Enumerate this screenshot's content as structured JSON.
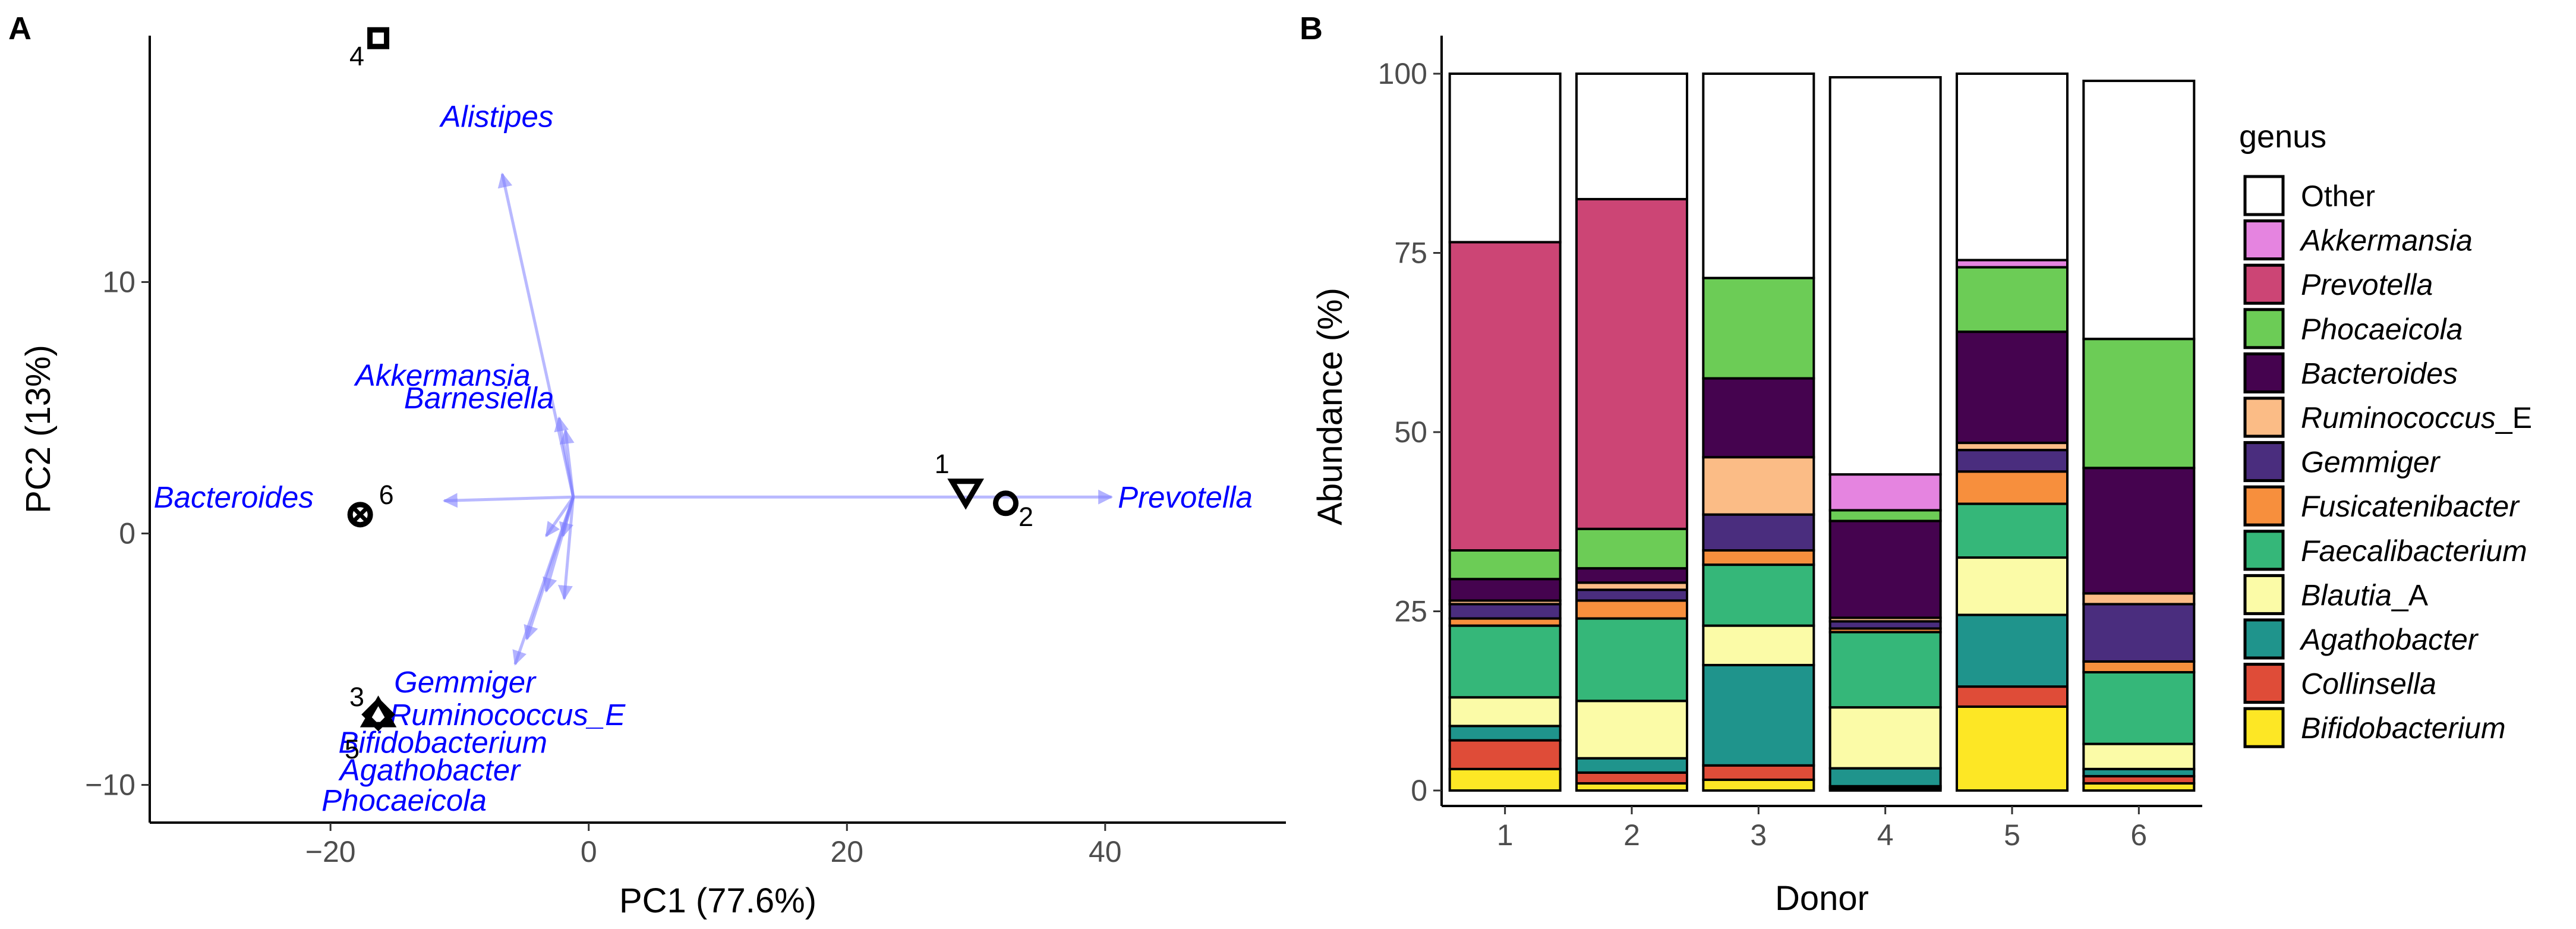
{
  "colors": {
    "arrow": "#8080ff",
    "genus_text": "#0000ff",
    "genus": {
      "Other": "#ffffff",
      "Akkermansia": "#e584e0",
      "Prevotella": "#cc4575",
      "Phocaeicola": "#6ccc56",
      "Bacteroides": "#45034f",
      "Ruminococcus_E": "#fbbc86",
      "Gemmiger": "#4a2d7e",
      "Fusicatenibacter": "#f78f3d",
      "Faecalibacterium": "#35b779",
      "Blautia_A": "#fbfba7",
      "Agathobacter": "#1f948c",
      "Collinsella": "#df4c38",
      "Bifidobacterium": "#fde725"
    }
  },
  "chart_data": [
    {
      "panel": "A",
      "type": "scatter",
      "subtype": "PCA biplot",
      "xlabel": "PC1 (77.6%)",
      "ylabel": "PC2 (13%)",
      "xlim": [
        -34,
        54
      ],
      "ylim": [
        -11.5,
        19.8
      ],
      "xticks": [
        {
          "value": -20,
          "label": "−20"
        },
        {
          "value": 0,
          "label": "0"
        },
        {
          "value": 20,
          "label": "20"
        },
        {
          "value": 40,
          "label": "40"
        }
      ],
      "yticks": [
        {
          "value": -10,
          "label": "−10"
        },
        {
          "value": 0,
          "label": "0"
        },
        {
          "value": 10,
          "label": "10"
        }
      ],
      "origin": [
        -1.2,
        1.45
      ],
      "points": [
        {
          "donor": "1",
          "shape": "triangle-down",
          "x": 29.2,
          "y": 1.65
        },
        {
          "donor": "2",
          "shape": "circle",
          "x": 32.3,
          "y": 1.2
        },
        {
          "donor": "3",
          "shape": "triangle-up",
          "x": -16.3,
          "y": -7.2
        },
        {
          "donor": "4",
          "shape": "square",
          "x": -16.3,
          "y": 19.7
        },
        {
          "donor": "5",
          "shape": "diamond",
          "x": -16.3,
          "y": -7.2
        },
        {
          "donor": "6",
          "shape": "circle-x",
          "x": -17.7,
          "y": 0.75
        }
      ],
      "arrows": [
        {
          "x": 40.5,
          "y": 1.45
        },
        {
          "x": -11.2,
          "y": 1.3
        },
        {
          "x": -6.7,
          "y": 14.3
        },
        {
          "x": -2.3,
          "y": 4.6
        },
        {
          "x": -1.8,
          "y": 4.1
        },
        {
          "x": -3.3,
          "y": -0.1
        },
        {
          "x": -2.0,
          "y": -0.1
        },
        {
          "x": -3.3,
          "y": -2.3
        },
        {
          "x": -1.9,
          "y": -2.6
        },
        {
          "x": -4.8,
          "y": -4.2
        },
        {
          "x": -5.7,
          "y": -5.2
        }
      ],
      "genus_labels": [
        {
          "text": "Alistipes",
          "x": -7.1,
          "y": 16.6
        },
        {
          "text": "Akkermansia",
          "x": -11.3,
          "y": 6.3
        },
        {
          "text": "Barnesiella",
          "x": -8.5,
          "y": 5.4
        },
        {
          "text": "Bacteroides",
          "x": -27.5,
          "y": 1.45
        },
        {
          "text": "Prevotella",
          "x": 46.2,
          "y": 1.45
        },
        {
          "text": "Gemmiger",
          "x": -9.6,
          "y": -5.9
        },
        {
          "text": "Ruminococcus_E",
          "x": -6.3,
          "y": -7.2
        },
        {
          "text": "Bifidobacterium",
          "x": -11.3,
          "y": -8.3
        },
        {
          "text": "Agathobacter",
          "x": -12.3,
          "y": -9.4
        },
        {
          "text": "Phocaeicola",
          "x": -14.3,
          "y": -10.6
        }
      ]
    },
    {
      "panel": "B",
      "type": "bar",
      "stacked": true,
      "xlabel": "Donor",
      "ylabel": "Abundance (%)",
      "ylim": [
        0,
        100
      ],
      "yticks": [
        "0",
        "25",
        "50",
        "75",
        "100"
      ],
      "legend_title": "genus",
      "legend_position": "right",
      "categories": [
        "1",
        "2",
        "3",
        "4",
        "5",
        "6"
      ],
      "series": [
        {
          "name": "Bifidobacterium",
          "italic": true,
          "values": [
            3,
            1,
            1.5,
            0.3,
            11.7,
            1
          ]
        },
        {
          "name": "Collinsella",
          "italic": true,
          "values": [
            4,
            1.5,
            2,
            0.3,
            2.8,
            1
          ]
        },
        {
          "name": "Agathobacter",
          "italic": true,
          "values": [
            2,
            2,
            14,
            2.5,
            10,
            1
          ]
        },
        {
          "name": "Blautia",
          "suffix": "_A",
          "italic": true,
          "values": [
            4,
            8,
            5.5,
            8.5,
            8,
            3.5
          ]
        },
        {
          "name": "Faecalibacterium",
          "italic": true,
          "values": [
            10,
            11.5,
            8.5,
            10.5,
            7.5,
            10
          ]
        },
        {
          "name": "Fusicatenibacter",
          "italic": true,
          "values": [
            1,
            2.5,
            2,
            0.5,
            4.5,
            1.5
          ]
        },
        {
          "name": "Gemmiger",
          "italic": true,
          "values": [
            2,
            1.5,
            5,
            1,
            3,
            8
          ]
        },
        {
          "name": "Ruminococcus",
          "suffix": "_E",
          "italic": true,
          "values": [
            0.5,
            1,
            8,
            0.5,
            1,
            1.5
          ]
        },
        {
          "name": "Bacteroides",
          "italic": true,
          "values": [
            3,
            2,
            11,
            13.5,
            15.5,
            17.5
          ]
        },
        {
          "name": "Phocaeicola",
          "italic": true,
          "values": [
            4,
            5.5,
            14,
            1.5,
            9,
            18
          ]
        },
        {
          "name": "Prevotella",
          "italic": true,
          "values": [
            43,
            46,
            0,
            0,
            0,
            0
          ]
        },
        {
          "name": "Akkermansia",
          "italic": true,
          "values": [
            0,
            0,
            0,
            5,
            1,
            0
          ]
        },
        {
          "name": "Other",
          "italic": false,
          "values": [
            23.5,
            17.5,
            28.5,
            55.4,
            26,
            36
          ]
        }
      ],
      "legend": [
        {
          "key": "Other",
          "name": "Other",
          "suffix": "",
          "italic": false
        },
        {
          "key": "Akkermansia",
          "name": "Akkermansia",
          "suffix": "",
          "italic": true
        },
        {
          "key": "Prevotella",
          "name": "Prevotella",
          "suffix": "",
          "italic": true
        },
        {
          "key": "Phocaeicola",
          "name": "Phocaeicola",
          "suffix": "",
          "italic": true
        },
        {
          "key": "Bacteroides",
          "name": "Bacteroides",
          "suffix": "",
          "italic": true
        },
        {
          "key": "Ruminococcus_E",
          "name": "Ruminococcus",
          "suffix": "_E",
          "italic": true
        },
        {
          "key": "Gemmiger",
          "name": "Gemmiger",
          "suffix": "",
          "italic": true
        },
        {
          "key": "Fusicatenibacter",
          "name": "Fusicatenibacter",
          "suffix": "",
          "italic": true
        },
        {
          "key": "Faecalibacterium",
          "name": "Faecalibacterium",
          "suffix": "",
          "italic": true
        },
        {
          "key": "Blautia_A",
          "name": "Blautia",
          "suffix": "_A",
          "italic": true
        },
        {
          "key": "Agathobacter",
          "name": "Agathobacter",
          "suffix": "",
          "italic": true
        },
        {
          "key": "Collinsella",
          "name": "Collinsella",
          "suffix": "",
          "italic": true
        },
        {
          "key": "Bifidobacterium",
          "name": "Bifidobacterium",
          "suffix": "",
          "italic": true
        }
      ]
    }
  ]
}
